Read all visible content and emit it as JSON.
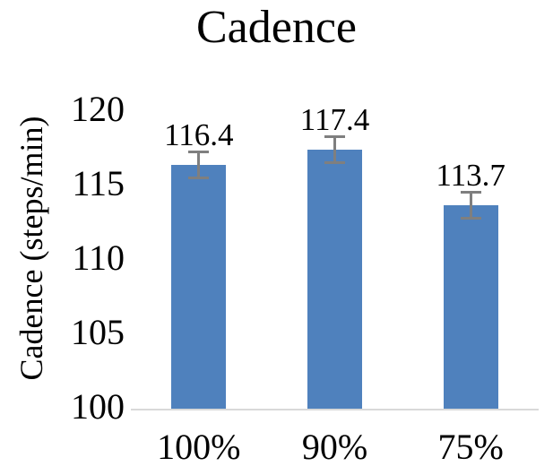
{
  "chart_data": {
    "type": "bar",
    "title": "Cadence",
    "categories": [
      "100%",
      "90%",
      "75%"
    ],
    "values": [
      116.4,
      117.4,
      113.7
    ],
    "value_labels": [
      "116.4",
      "117.4",
      "113.7"
    ],
    "errors": [
      0.9,
      0.9,
      0.9
    ],
    "xlabel": "",
    "ylabel": "Cadence (steps/min)",
    "ylim": [
      100,
      120
    ],
    "yticks": [
      100,
      105,
      110,
      115,
      120
    ],
    "grid": false,
    "legend": "none",
    "bar_color": "#4F81BD",
    "error_bar_color": "#7F7F7F",
    "axis_line_color": "#D9D9D9",
    "text_color": "#000000"
  }
}
